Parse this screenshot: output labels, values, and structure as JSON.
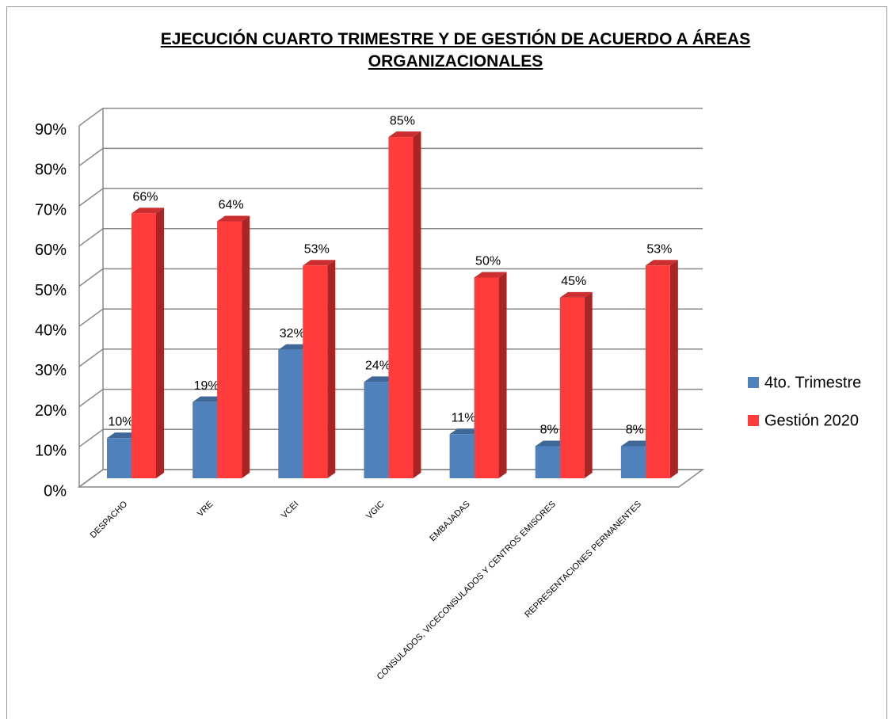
{
  "chart_data": {
    "type": "bar3d",
    "title": "EJECUCIÓN CUARTO TRIMESTRE Y DE GESTIÓN DE ACUERDO A ÁREAS ORGANIZACIONALES",
    "categories": [
      "DESPACHO",
      "VRE",
      "VCEI",
      "VGIC",
      "EMBAJADAS",
      "CONSULADOS, VICECONSULADOS Y CENTROS EMISORES",
      "REPRESENTACIONES PERMANENTES"
    ],
    "series": [
      {
        "name": "4to. Trimestre",
        "color": "#4f81bd",
        "values": [
          10,
          19,
          32,
          24,
          11,
          8,
          8
        ],
        "value_labels": [
          "10%",
          "19%",
          "32%",
          "24%",
          "11%",
          "8%",
          "8%"
        ]
      },
      {
        "name": "Gestión 2020",
        "color": "#ff3b3b",
        "values": [
          66,
          64,
          53,
          85,
          50,
          45,
          53
        ],
        "value_labels": [
          "66%",
          "64%",
          "53%",
          "85%",
          "50%",
          "45%",
          "53%"
        ]
      }
    ],
    "ylim": [
      0,
      90
    ],
    "yticks": [
      {
        "value": 0,
        "label": "0%"
      },
      {
        "value": 10,
        "label": "10%"
      },
      {
        "value": 20,
        "label": "20%"
      },
      {
        "value": 30,
        "label": "30%"
      },
      {
        "value": 40,
        "label": "40%"
      },
      {
        "value": 50,
        "label": "50%"
      },
      {
        "value": 60,
        "label": "60%"
      },
      {
        "value": 70,
        "label": "70%"
      },
      {
        "value": 80,
        "label": "80%"
      },
      {
        "value": 90,
        "label": "90%"
      }
    ],
    "grid": true,
    "legend": "right"
  }
}
